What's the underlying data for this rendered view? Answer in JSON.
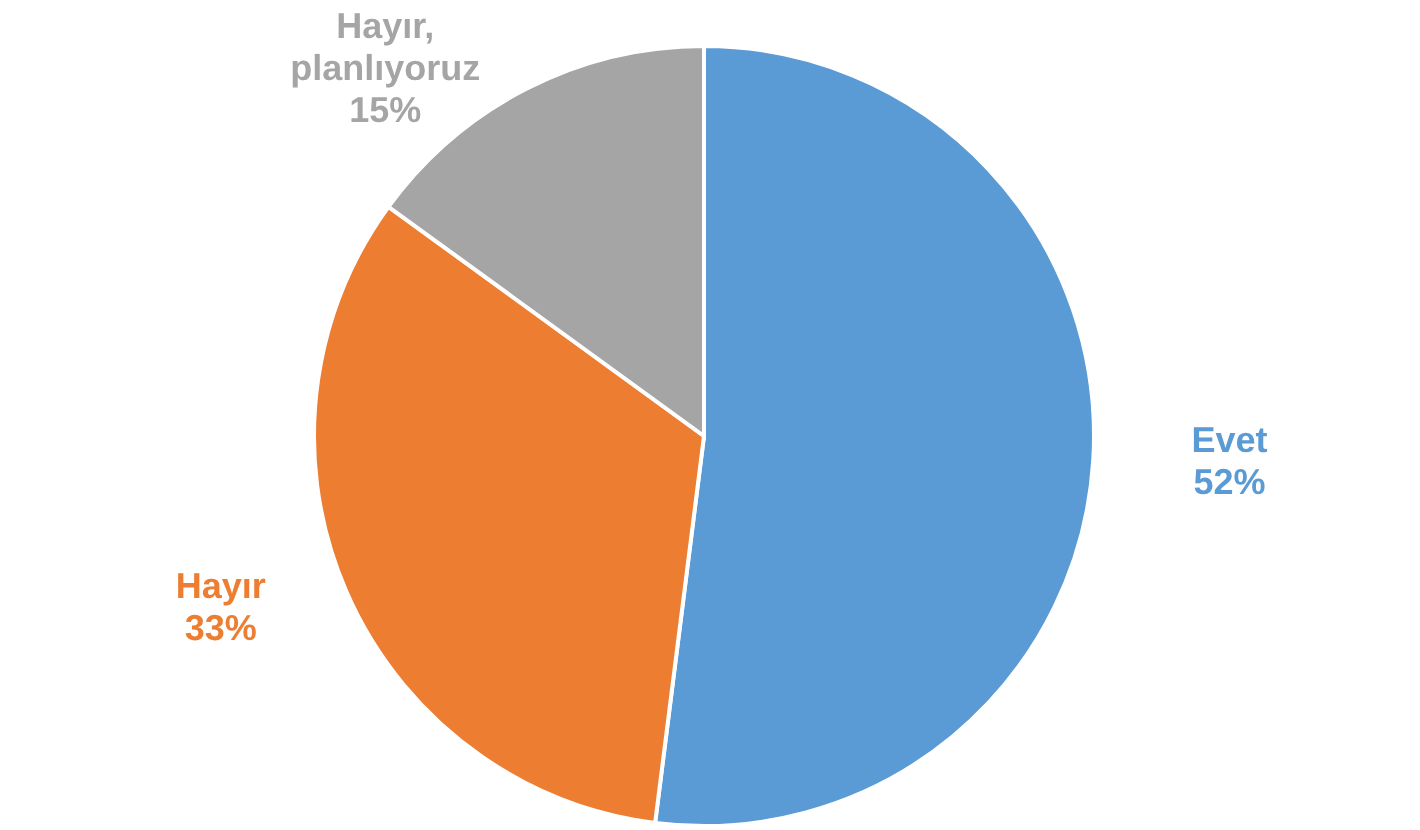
{
  "chart_data": {
    "type": "pie",
    "categories": [
      "Evet",
      "Hayır",
      "Hayır, planlıyoruz"
    ],
    "values": [
      52,
      33,
      15
    ],
    "value_labels": [
      "52%",
      "33%",
      "15%"
    ],
    "colors": [
      "#5b9bd5",
      "#ed7d31",
      "#a5a5a5"
    ]
  }
}
